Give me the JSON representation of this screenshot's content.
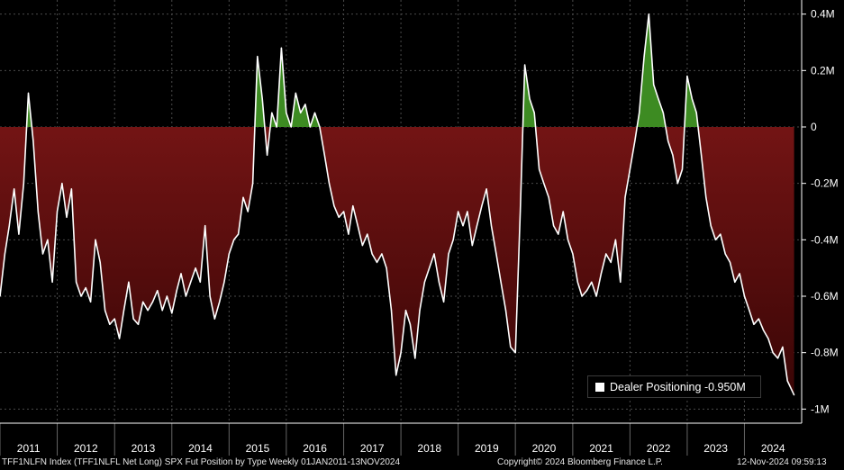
{
  "chart_data": {
    "type": "area",
    "series": [
      {
        "name": "Dealer Positioning",
        "last_value_label": "-0.950M",
        "points": [
          [
            "2011-01-01",
            -0.6
          ],
          [
            "2011-02-01",
            -0.45
          ],
          [
            "2011-03-01",
            -0.35
          ],
          [
            "2011-04-01",
            -0.22
          ],
          [
            "2011-05-01",
            -0.38
          ],
          [
            "2011-06-01",
            -0.2
          ],
          [
            "2011-07-01",
            0.12
          ],
          [
            "2011-08-01",
            -0.05
          ],
          [
            "2011-09-01",
            -0.3
          ],
          [
            "2011-10-01",
            -0.45
          ],
          [
            "2011-11-01",
            -0.4
          ],
          [
            "2011-12-01",
            -0.55
          ],
          [
            "2012-01-01",
            -0.3
          ],
          [
            "2012-02-01",
            -0.2
          ],
          [
            "2012-03-01",
            -0.32
          ],
          [
            "2012-04-01",
            -0.22
          ],
          [
            "2012-05-01",
            -0.55
          ],
          [
            "2012-06-01",
            -0.6
          ],
          [
            "2012-07-01",
            -0.57
          ],
          [
            "2012-08-01",
            -0.62
          ],
          [
            "2012-09-01",
            -0.4
          ],
          [
            "2012-10-01",
            -0.48
          ],
          [
            "2012-11-01",
            -0.65
          ],
          [
            "2012-12-01",
            -0.7
          ],
          [
            "2013-01-01",
            -0.68
          ],
          [
            "2013-02-01",
            -0.75
          ],
          [
            "2013-03-01",
            -0.65
          ],
          [
            "2013-04-01",
            -0.55
          ],
          [
            "2013-05-01",
            -0.68
          ],
          [
            "2013-06-01",
            -0.7
          ],
          [
            "2013-07-01",
            -0.62
          ],
          [
            "2013-08-01",
            -0.65
          ],
          [
            "2013-09-01",
            -0.62
          ],
          [
            "2013-10-01",
            -0.58
          ],
          [
            "2013-11-01",
            -0.65
          ],
          [
            "2013-12-01",
            -0.6
          ],
          [
            "2014-01-01",
            -0.66
          ],
          [
            "2014-02-01",
            -0.58
          ],
          [
            "2014-03-01",
            -0.52
          ],
          [
            "2014-04-01",
            -0.6
          ],
          [
            "2014-05-01",
            -0.55
          ],
          [
            "2014-06-01",
            -0.5
          ],
          [
            "2014-07-01",
            -0.55
          ],
          [
            "2014-08-01",
            -0.35
          ],
          [
            "2014-09-01",
            -0.6
          ],
          [
            "2014-10-01",
            -0.68
          ],
          [
            "2014-11-01",
            -0.62
          ],
          [
            "2014-12-01",
            -0.55
          ],
          [
            "2015-01-01",
            -0.45
          ],
          [
            "2015-02-01",
            -0.4
          ],
          [
            "2015-03-01",
            -0.38
          ],
          [
            "2015-04-01",
            -0.25
          ],
          [
            "2015-05-01",
            -0.3
          ],
          [
            "2015-06-01",
            -0.2
          ],
          [
            "2015-07-01",
            0.25
          ],
          [
            "2015-08-01",
            0.1
          ],
          [
            "2015-09-01",
            -0.1
          ],
          [
            "2015-10-01",
            0.05
          ],
          [
            "2015-11-01",
            0.0
          ],
          [
            "2015-12-01",
            0.28
          ],
          [
            "2016-01-01",
            0.05
          ],
          [
            "2016-02-01",
            0.0
          ],
          [
            "2016-03-01",
            0.12
          ],
          [
            "2016-04-01",
            0.05
          ],
          [
            "2016-05-01",
            0.08
          ],
          [
            "2016-06-01",
            0.0
          ],
          [
            "2016-07-01",
            0.05
          ],
          [
            "2016-08-01",
            0.0
          ],
          [
            "2016-09-01",
            -0.1
          ],
          [
            "2016-10-01",
            -0.2
          ],
          [
            "2016-11-01",
            -0.28
          ],
          [
            "2016-12-01",
            -0.32
          ],
          [
            "2017-01-01",
            -0.3
          ],
          [
            "2017-02-01",
            -0.38
          ],
          [
            "2017-03-01",
            -0.28
          ],
          [
            "2017-04-01",
            -0.35
          ],
          [
            "2017-05-01",
            -0.42
          ],
          [
            "2017-06-01",
            -0.38
          ],
          [
            "2017-07-01",
            -0.45
          ],
          [
            "2017-08-01",
            -0.48
          ],
          [
            "2017-09-01",
            -0.45
          ],
          [
            "2017-10-01",
            -0.5
          ],
          [
            "2017-11-01",
            -0.65
          ],
          [
            "2017-12-01",
            -0.88
          ],
          [
            "2018-01-01",
            -0.8
          ],
          [
            "2018-02-01",
            -0.65
          ],
          [
            "2018-03-01",
            -0.7
          ],
          [
            "2018-04-01",
            -0.82
          ],
          [
            "2018-05-01",
            -0.65
          ],
          [
            "2018-06-01",
            -0.55
          ],
          [
            "2018-07-01",
            -0.5
          ],
          [
            "2018-08-01",
            -0.45
          ],
          [
            "2018-09-01",
            -0.55
          ],
          [
            "2018-10-01",
            -0.62
          ],
          [
            "2018-11-01",
            -0.45
          ],
          [
            "2018-12-01",
            -0.4
          ],
          [
            "2019-01-01",
            -0.3
          ],
          [
            "2019-02-01",
            -0.35
          ],
          [
            "2019-03-01",
            -0.3
          ],
          [
            "2019-04-01",
            -0.42
          ],
          [
            "2019-05-01",
            -0.35
          ],
          [
            "2019-06-01",
            -0.28
          ],
          [
            "2019-07-01",
            -0.22
          ],
          [
            "2019-08-01",
            -0.35
          ],
          [
            "2019-09-01",
            -0.45
          ],
          [
            "2019-10-01",
            -0.55
          ],
          [
            "2019-11-01",
            -0.65
          ],
          [
            "2019-12-01",
            -0.78
          ],
          [
            "2020-01-01",
            -0.8
          ],
          [
            "2020-02-01",
            -0.3
          ],
          [
            "2020-03-01",
            0.22
          ],
          [
            "2020-04-01",
            0.1
          ],
          [
            "2020-05-01",
            0.05
          ],
          [
            "2020-06-01",
            -0.15
          ],
          [
            "2020-07-01",
            -0.2
          ],
          [
            "2020-08-01",
            -0.25
          ],
          [
            "2020-09-01",
            -0.35
          ],
          [
            "2020-10-01",
            -0.38
          ],
          [
            "2020-11-01",
            -0.3
          ],
          [
            "2020-12-01",
            -0.4
          ],
          [
            "2021-01-01",
            -0.45
          ],
          [
            "2021-02-01",
            -0.55
          ],
          [
            "2021-03-01",
            -0.6
          ],
          [
            "2021-04-01",
            -0.58
          ],
          [
            "2021-05-01",
            -0.55
          ],
          [
            "2021-06-01",
            -0.6
          ],
          [
            "2021-07-01",
            -0.52
          ],
          [
            "2021-08-01",
            -0.45
          ],
          [
            "2021-09-01",
            -0.48
          ],
          [
            "2021-10-01",
            -0.4
          ],
          [
            "2021-11-01",
            -0.55
          ],
          [
            "2021-12-01",
            -0.25
          ],
          [
            "2022-01-01",
            -0.15
          ],
          [
            "2022-02-01",
            -0.05
          ],
          [
            "2022-03-01",
            0.05
          ],
          [
            "2022-04-01",
            0.25
          ],
          [
            "2022-05-01",
            0.4
          ],
          [
            "2022-06-01",
            0.15
          ],
          [
            "2022-07-01",
            0.1
          ],
          [
            "2022-08-01",
            0.05
          ],
          [
            "2022-09-01",
            -0.05
          ],
          [
            "2022-10-01",
            -0.1
          ],
          [
            "2022-11-01",
            -0.2
          ],
          [
            "2022-12-01",
            -0.15
          ],
          [
            "2023-01-01",
            0.18
          ],
          [
            "2023-02-01",
            0.1
          ],
          [
            "2023-03-01",
            0.05
          ],
          [
            "2023-04-01",
            -0.1
          ],
          [
            "2023-05-01",
            -0.25
          ],
          [
            "2023-06-01",
            -0.35
          ],
          [
            "2023-07-01",
            -0.4
          ],
          [
            "2023-08-01",
            -0.38
          ],
          [
            "2023-09-01",
            -0.45
          ],
          [
            "2023-10-01",
            -0.48
          ],
          [
            "2023-11-01",
            -0.55
          ],
          [
            "2023-12-01",
            -0.52
          ],
          [
            "2024-01-01",
            -0.6
          ],
          [
            "2024-02-01",
            -0.65
          ],
          [
            "2024-03-01",
            -0.7
          ],
          [
            "2024-04-01",
            -0.68
          ],
          [
            "2024-05-01",
            -0.72
          ],
          [
            "2024-06-01",
            -0.75
          ],
          [
            "2024-07-01",
            -0.8
          ],
          [
            "2024-08-01",
            -0.82
          ],
          [
            "2024-09-01",
            -0.78
          ],
          [
            "2024-10-01",
            -0.9
          ],
          [
            "2024-11-13",
            -0.95
          ]
        ]
      }
    ],
    "x_years": [
      "2011",
      "2012",
      "2013",
      "2014",
      "2015",
      "2016",
      "2017",
      "2018",
      "2019",
      "2020",
      "2021",
      "2022",
      "2023",
      "2024"
    ],
    "xlim": [
      "2011-01-01",
      "2024-12-31"
    ],
    "ylim": [
      -1.05,
      0.45
    ],
    "y_ticks": [
      0.4,
      0.2,
      0,
      -0.2,
      -0.4,
      -0.6,
      -0.8,
      -1.0
    ],
    "y_tick_labels": [
      "0.4M",
      "0.2M",
      "0",
      "-0.2M",
      "-0.4M",
      "-0.6M",
      "-0.8M",
      "-1M"
    ],
    "grid": true,
    "legend_position": "bottom-right",
    "colors": {
      "line": "#ffffff",
      "positive_fill": "#3d8b22",
      "negative_fill_top": "#8b1a1a",
      "negative_fill_bottom": "#3a0606",
      "grid": "#4a4a4a",
      "background": "#000000"
    }
  },
  "legend": {
    "label": "Dealer Positioning",
    "value": "-0.950M"
  },
  "footer": {
    "left": "TFF1NLFN Index (TFF1NLFL Net Long) SPX Fut Position by Type  Weekly 01JAN2011-13NOV2024",
    "center": "Copyright© 2024 Bloomberg Finance L.P.",
    "right": "12-Nov-2024 09:59:13"
  }
}
